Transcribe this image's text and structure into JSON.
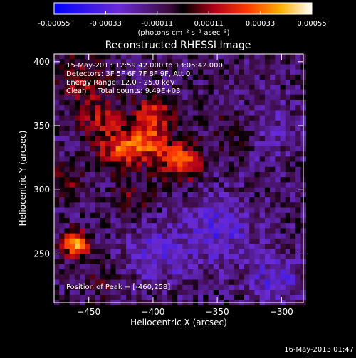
{
  "chart_data": {
    "type": "heatmap",
    "title": "Reconstructed RHESSI Image",
    "xlabel": "Heliocentric X (arcsec)",
    "ylabel": "Heliocentric Y (arcsec)",
    "xlim": [
      -477,
      -283
    ],
    "ylim": [
      212,
      406
    ],
    "x_ticks": [
      -450,
      -400,
      -350,
      -300
    ],
    "y_ticks": [
      250,
      300,
      350,
      400
    ],
    "colorbar": {
      "tick_values": [
        -0.00055,
        -0.00033,
        -0.00011,
        0.00011,
        0.00033,
        0.00055
      ],
      "tick_labels": [
        "-0.00055",
        "-0.00033",
        "-0.00011",
        "0.00011",
        "0.00033",
        "0.00055"
      ],
      "units_label": "(photons cm⁻² s⁻¹ asec⁻²)",
      "range": [
        -0.00055,
        0.00055
      ]
    },
    "annotations": {
      "time_range": "15-May-2013 12:59:42.000 to 13:05:42.000",
      "detectors": "Detectors: 3F 5F 6F 7F 8F 9F, Att 0",
      "energy": "Energy Range: 12.0 - 25.0 keV",
      "clean": "Clean     Total counts: 9.49E+03",
      "peak": "Position of Peak = [-460,258]"
    },
    "sources": [
      {
        "x": -460,
        "y": 258,
        "amp": 0.00055,
        "sigma": 7
      },
      {
        "x": -378,
        "y": 322,
        "amp": 0.00045,
        "sigma": 10
      },
      {
        "x": -405,
        "y": 338,
        "amp": 0.00038,
        "sigma": 12
      },
      {
        "x": -428,
        "y": 330,
        "amp": 0.00032,
        "sigma": 10
      },
      {
        "x": -398,
        "y": 362,
        "amp": 0.00025,
        "sigma": 10
      },
      {
        "x": -440,
        "y": 355,
        "amp": 0.00022,
        "sigma": 12
      },
      {
        "x": -455,
        "y": 385,
        "amp": 0.00018,
        "sigma": 14
      },
      {
        "x": -470,
        "y": 305,
        "amp": 0.00018,
        "sigma": 10
      },
      {
        "x": -415,
        "y": 295,
        "amp": 0.00014,
        "sigma": 10
      },
      {
        "x": -338,
        "y": 345,
        "amp": 0.00012,
        "sigma": 12
      },
      {
        "x": -440,
        "y": 228,
        "amp": 0.0001,
        "sigma": 10
      },
      {
        "x": -350,
        "y": 270,
        "amp": -0.0002,
        "sigma": 18
      },
      {
        "x": -395,
        "y": 250,
        "amp": -0.00016,
        "sigma": 16
      },
      {
        "x": -305,
        "y": 230,
        "amp": -0.00018,
        "sigma": 14
      },
      {
        "x": -310,
        "y": 350,
        "amp": -8e-05,
        "sigma": 18
      }
    ]
  },
  "footer": {
    "timestamp": "16-May-2013 01:47"
  }
}
